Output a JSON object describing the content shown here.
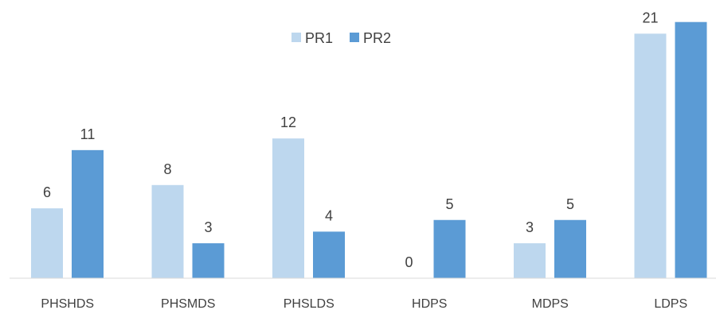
{
  "chart_data": {
    "type": "bar",
    "categories": [
      "PHSHDS",
      "PHSMDS",
      "PHSLDS",
      "HDPS",
      "MDPS",
      "LDPS"
    ],
    "series": [
      {
        "name": "PR1",
        "values": [
          6,
          8,
          12,
          0,
          3,
          21
        ],
        "color": "#bdd7ee"
      },
      {
        "name": "PR2",
        "values": [
          11,
          3,
          4,
          5,
          5,
          22
        ],
        "color": "#5b9bd5"
      }
    ],
    "data_labels_shown": [
      "6",
      "8",
      "12",
      "0",
      "3",
      "21",
      "11",
      "3",
      "4",
      "5",
      "5"
    ],
    "ylim": [
      0,
      22.2
    ],
    "legend_position": "top-center",
    "grid": false,
    "title": "",
    "xlabel": "",
    "ylabel": ""
  }
}
